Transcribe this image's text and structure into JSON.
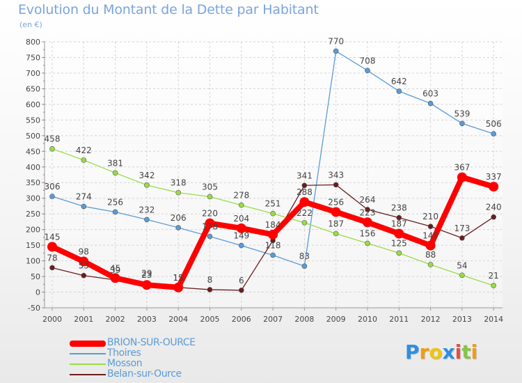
{
  "chart_data": {
    "type": "line",
    "title": "Evolution du Montant de la Dette par Habitant",
    "subtitle": "(en €)",
    "x": [
      "2000",
      "2001",
      "2002",
      "2003",
      "2004",
      "2005",
      "2006",
      "2007",
      "2008",
      "2009",
      "2010",
      "2011",
      "2012",
      "2013",
      "2014"
    ],
    "y_ticks": [
      "-50",
      "0",
      "50",
      "100",
      "150",
      "200",
      "250",
      "300",
      "350",
      "400",
      "450",
      "500",
      "550",
      "600",
      "650",
      "700",
      "750",
      "800"
    ],
    "ylim": [
      -50,
      800
    ],
    "grid": true,
    "legend_position": "bottom-left",
    "series": [
      {
        "name": "BRION-SUR-OURCE",
        "color": "#ff0000",
        "values": [
          145,
          98,
          45,
          23,
          15,
          220,
          204,
          184,
          288,
          256,
          223,
          187,
          149,
          367,
          337
        ],
        "labels": [
          "145",
          "98",
          "45",
          "23",
          "15",
          "220",
          "204",
          "184",
          "288",
          "256",
          "223",
          "187",
          "149",
          "367",
          "337"
        ]
      },
      {
        "name": "Thoires",
        "color": "#5b9bd5",
        "values": [
          306,
          274,
          256,
          232,
          206,
          178,
          149,
          118,
          83,
          770,
          708,
          642,
          603,
          539,
          506
        ],
        "labels": [
          "306",
          "274",
          "256",
          "232",
          "206",
          "178",
          "149",
          "118",
          "83",
          "770",
          "708",
          "642",
          "603",
          "539",
          "506"
        ]
      },
      {
        "name": "Mosson",
        "color": "#99dd44",
        "values": [
          458,
          422,
          381,
          342,
          318,
          305,
          278,
          251,
          222,
          187,
          156,
          125,
          88,
          54,
          21
        ],
        "labels": [
          "458",
          "422",
          "381",
          "342",
          "318",
          "305",
          "278",
          "251",
          "222",
          "187",
          "156",
          "125",
          "88",
          "54",
          "21"
        ]
      },
      {
        "name": "Belan-sur-Ource",
        "color": "#6b1c1c",
        "values": [
          78,
          53,
          39,
          29,
          15,
          8,
          6,
          165,
          341,
          343,
          264,
          238,
          210,
          173,
          240
        ],
        "labels": [
          "78",
          "53",
          "39",
          "29",
          "15",
          "8",
          "6",
          "",
          "341",
          "343",
          "264",
          "238",
          "210",
          "173",
          "240"
        ]
      }
    ]
  },
  "brand": {
    "letters": [
      "P",
      "r",
      "o",
      "x",
      "i",
      "t",
      "i"
    ],
    "colors": [
      "#2d8fe0",
      "#f39c12",
      "#f1c40f",
      "#2d8fe0",
      "#e74c3c",
      "#8bc34a",
      "#f39c12"
    ]
  }
}
